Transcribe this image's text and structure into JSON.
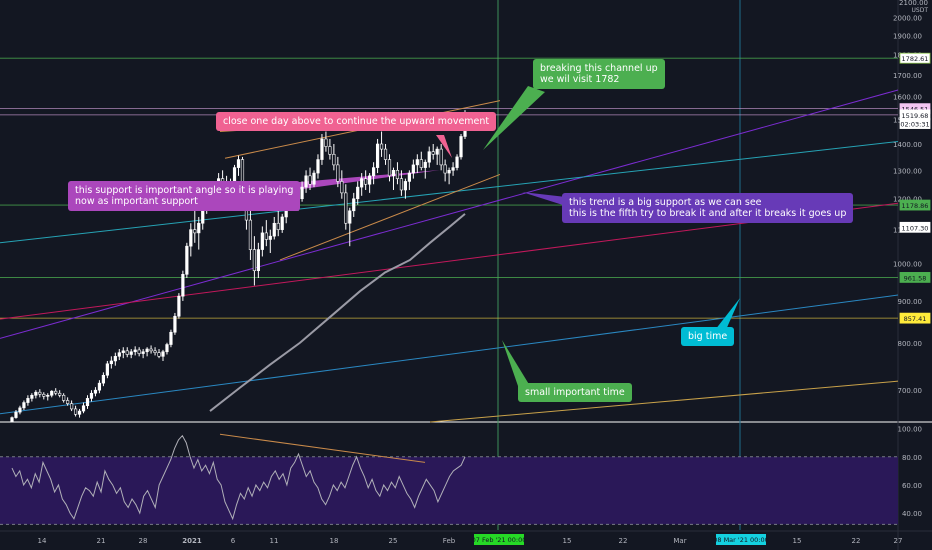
{
  "chart_data": {
    "type": "candlestick",
    "symbol_unit": "USDT",
    "price_axis": {
      "top_label": "2100.00",
      "ticks": [
        2000,
        1900,
        1800,
        1700,
        1600,
        1500,
        1400,
        1300,
        1200,
        1100,
        1000,
        900,
        800,
        700
      ],
      "ylim": [
        640,
        2100
      ],
      "scale": "log"
    },
    "rsi_axis": {
      "ticks": [
        100,
        80,
        60,
        40
      ],
      "ylim": [
        28,
        104
      ],
      "band": [
        30,
        80
      ]
    },
    "x_ticks": [
      "14",
      "21",
      "28",
      "2021",
      "6",
      "11",
      "18",
      "25",
      "Feb",
      "15",
      "22",
      "Mar",
      "15",
      "22",
      "27"
    ],
    "time_markers": [
      {
        "label": "07 Feb '21  00:00",
        "color": "#26d926"
      },
      {
        "label": "08 Mar '21  00:00",
        "color": "#14d1e0"
      }
    ],
    "price_labels": [
      {
        "value": 1782.61,
        "text": "1782.61",
        "bg": "#ffffff",
        "fg": "#131722",
        "border": "#8bc34a"
      },
      {
        "value": 1546.51,
        "text": "1546.51",
        "bg": "#f3c6f3",
        "fg": "#131722",
        "border": "#f3c6f3"
      },
      {
        "value": 1519.68,
        "text": "1519.68",
        "bg": "#ffffff",
        "fg": "#131722",
        "border": "#ffffff"
      },
      {
        "value": 1483,
        "text": "02:03:31",
        "bg": "#ffffff",
        "fg": "#131722",
        "border": "#ffffff"
      },
      {
        "value": 1178.86,
        "text": "1178.86",
        "bg": "#4caf50",
        "fg": "#131722",
        "border": "#4caf50"
      },
      {
        "value": 1107.3,
        "text": "1107.30",
        "bg": "#ffffff",
        "fg": "#131722",
        "border": "#ffffff"
      },
      {
        "value": 961.58,
        "text": "961.58",
        "bg": "#4caf50",
        "fg": "#131722",
        "border": "#4caf50"
      },
      {
        "value": 857.41,
        "text": "857.41",
        "bg": "#ffeb3b",
        "fg": "#131722",
        "border": "#ffeb3b"
      }
    ],
    "annotations": [
      {
        "id": "channel-note",
        "lines": [
          "breaking this channel up",
          "we wil visit 1782"
        ],
        "bg": "#4caf50"
      },
      {
        "id": "close-note",
        "lines": [
          "close one day above to continue the upward movement"
        ],
        "bg": "#f06292"
      },
      {
        "id": "support-note",
        "lines": [
          "this support is important angle so it is playing",
          "now as important support"
        ],
        "bg": "#ab47bc"
      },
      {
        "id": "trend-note",
        "lines": [
          "this trend is a big support as we can see",
          "this is the fifth try to break it and after it breaks  it goes up"
        ],
        "bg": "#673ab7"
      },
      {
        "id": "bigtime-note",
        "lines": [
          "big time"
        ],
        "bg": "#00bcd4"
      },
      {
        "id": "smalltime-note",
        "lines": [
          "small important time"
        ],
        "bg": "#4caf50"
      }
    ],
    "candles": [
      [
        640,
        650,
        645,
        648
      ],
      [
        648,
        662,
        646,
        658
      ],
      [
        658,
        670,
        654,
        666
      ],
      [
        666,
        680,
        662,
        676
      ],
      [
        676,
        690,
        670,
        684
      ],
      [
        684,
        694,
        678,
        690
      ],
      [
        690,
        700,
        684,
        696
      ],
      [
        696,
        702,
        686,
        692
      ],
      [
        692,
        696,
        682,
        688
      ],
      [
        688,
        694,
        680,
        690
      ],
      [
        690,
        700,
        686,
        698
      ],
      [
        698,
        704,
        690,
        694
      ],
      [
        694,
        700,
        686,
        690
      ],
      [
        690,
        694,
        676,
        680
      ],
      [
        680,
        686,
        670,
        674
      ],
      [
        674,
        680,
        660,
        664
      ],
      [
        664,
        670,
        650,
        654
      ],
      [
        654,
        664,
        648,
        660
      ],
      [
        660,
        676,
        656,
        670
      ],
      [
        670,
        690,
        664,
        684
      ],
      [
        684,
        700,
        678,
        694
      ],
      [
        694,
        706,
        688,
        700
      ],
      [
        700,
        720,
        694,
        714
      ],
      [
        714,
        736,
        708,
        730
      ],
      [
        730,
        760,
        724,
        754
      ],
      [
        754,
        770,
        744,
        760
      ],
      [
        760,
        778,
        750,
        770
      ],
      [
        770,
        786,
        762,
        778
      ],
      [
        778,
        790,
        766,
        782
      ],
      [
        782,
        790,
        768,
        774
      ],
      [
        774,
        786,
        766,
        780
      ],
      [
        780,
        792,
        772,
        784
      ],
      [
        784,
        790,
        770,
        776
      ],
      [
        776,
        786,
        766,
        780
      ],
      [
        780,
        790,
        770,
        786
      ],
      [
        786,
        794,
        776,
        782
      ],
      [
        782,
        790,
        772,
        778
      ],
      [
        778,
        786,
        766,
        770
      ],
      [
        770,
        784,
        760,
        780
      ],
      [
        780,
        800,
        774,
        796
      ],
      [
        796,
        830,
        790,
        824
      ],
      [
        824,
        870,
        818,
        862
      ],
      [
        862,
        920,
        856,
        912
      ],
      [
        912,
        980,
        900,
        970
      ],
      [
        970,
        1060,
        960,
        1050
      ],
      [
        1050,
        1120,
        1020,
        1100
      ],
      [
        1100,
        1160,
        1060,
        1090
      ],
      [
        1090,
        1140,
        1040,
        1120
      ],
      [
        1120,
        1180,
        1100,
        1170
      ],
      [
        1170,
        1240,
        1150,
        1220
      ],
      [
        1220,
        1260,
        1180,
        1200
      ],
      [
        1200,
        1240,
        1170,
        1230
      ],
      [
        1230,
        1290,
        1210,
        1270
      ],
      [
        1270,
        1300,
        1230,
        1250
      ],
      [
        1250,
        1280,
        1210,
        1230
      ],
      [
        1230,
        1270,
        1200,
        1260
      ],
      [
        1260,
        1320,
        1240,
        1310
      ],
      [
        1310,
        1355,
        1280,
        1340
      ],
      [
        1340,
        1350,
        1180,
        1200
      ],
      [
        1200,
        1230,
        1100,
        1130
      ],
      [
        1130,
        1160,
        1010,
        1040
      ],
      [
        1040,
        1080,
        940,
        980
      ],
      [
        980,
        1060,
        960,
        1040
      ],
      [
        1040,
        1110,
        1020,
        1090
      ],
      [
        1090,
        1130,
        1050,
        1070
      ],
      [
        1070,
        1100,
        1030,
        1080
      ],
      [
        1080,
        1140,
        1070,
        1120
      ],
      [
        1120,
        1160,
        1080,
        1100
      ],
      [
        1100,
        1150,
        1090,
        1140
      ],
      [
        1140,
        1200,
        1120,
        1180
      ],
      [
        1180,
        1230,
        1160,
        1210
      ],
      [
        1210,
        1240,
        1170,
        1190
      ],
      [
        1190,
        1220,
        1160,
        1200
      ],
      [
        1200,
        1260,
        1190,
        1240
      ],
      [
        1240,
        1300,
        1220,
        1280
      ],
      [
        1280,
        1310,
        1230,
        1250
      ],
      [
        1250,
        1300,
        1240,
        1290
      ],
      [
        1290,
        1360,
        1270,
        1340
      ],
      [
        1340,
        1440,
        1320,
        1420
      ],
      [
        1420,
        1450,
        1370,
        1390
      ],
      [
        1390,
        1420,
        1340,
        1360
      ],
      [
        1360,
        1400,
        1300,
        1320
      ],
      [
        1320,
        1350,
        1240,
        1260
      ],
      [
        1260,
        1300,
        1200,
        1220
      ],
      [
        1220,
        1250,
        1100,
        1120
      ],
      [
        1120,
        1170,
        1050,
        1160
      ],
      [
        1160,
        1220,
        1140,
        1200
      ],
      [
        1200,
        1260,
        1180,
        1240
      ],
      [
        1240,
        1290,
        1210,
        1270
      ],
      [
        1270,
        1300,
        1230,
        1250
      ],
      [
        1250,
        1290,
        1220,
        1280
      ],
      [
        1280,
        1330,
        1250,
        1310
      ],
      [
        1310,
        1420,
        1290,
        1400
      ],
      [
        1400,
        1450,
        1350,
        1380
      ],
      [
        1380,
        1400,
        1320,
        1340
      ],
      [
        1340,
        1360,
        1260,
        1280
      ],
      [
        1280,
        1310,
        1230,
        1300
      ],
      [
        1300,
        1330,
        1250,
        1270
      ],
      [
        1270,
        1300,
        1210,
        1230
      ],
      [
        1230,
        1270,
        1200,
        1260
      ],
      [
        1260,
        1300,
        1230,
        1290
      ],
      [
        1290,
        1340,
        1270,
        1320
      ],
      [
        1320,
        1360,
        1290,
        1340
      ],
      [
        1340,
        1370,
        1300,
        1310
      ],
      [
        1310,
        1340,
        1270,
        1330
      ],
      [
        1330,
        1390,
        1310,
        1370
      ],
      [
        1370,
        1400,
        1340,
        1360
      ],
      [
        1360,
        1390,
        1320,
        1380
      ],
      [
        1380,
        1400,
        1300,
        1320
      ],
      [
        1320,
        1340,
        1260,
        1290
      ],
      [
        1290,
        1310,
        1250,
        1300
      ],
      [
        1300,
        1330,
        1280,
        1310
      ],
      [
        1310,
        1360,
        1300,
        1350
      ],
      [
        1350,
        1440,
        1340,
        1430
      ],
      [
        1430,
        1540,
        1420,
        1519.68
      ]
    ],
    "rsi": [
      72,
      66,
      70,
      60,
      64,
      58,
      68,
      62,
      76,
      70,
      64,
      55,
      60,
      50,
      46,
      40,
      36,
      44,
      52,
      58,
      56,
      52,
      62,
      55,
      70,
      64,
      60,
      54,
      58,
      48,
      44,
      50,
      46,
      40,
      52,
      56,
      50,
      44,
      60,
      66,
      72,
      78,
      86,
      92,
      95,
      90,
      80,
      72,
      78,
      70,
      74,
      68,
      76,
      64,
      60,
      48,
      42,
      36,
      46,
      54,
      50,
      58,
      52,
      60,
      56,
      62,
      58,
      66,
      70,
      64,
      68,
      60,
      72,
      76,
      82,
      74,
      66,
      70,
      62,
      58,
      50,
      46,
      52,
      60,
      56,
      62,
      58,
      66,
      74,
      80,
      72,
      66,
      58,
      64,
      56,
      52,
      60,
      56,
      62,
      58,
      66,
      60,
      54,
      50,
      44,
      52,
      58,
      64,
      60,
      56,
      48,
      54,
      60,
      66,
      70,
      72,
      74,
      80
    ]
  }
}
